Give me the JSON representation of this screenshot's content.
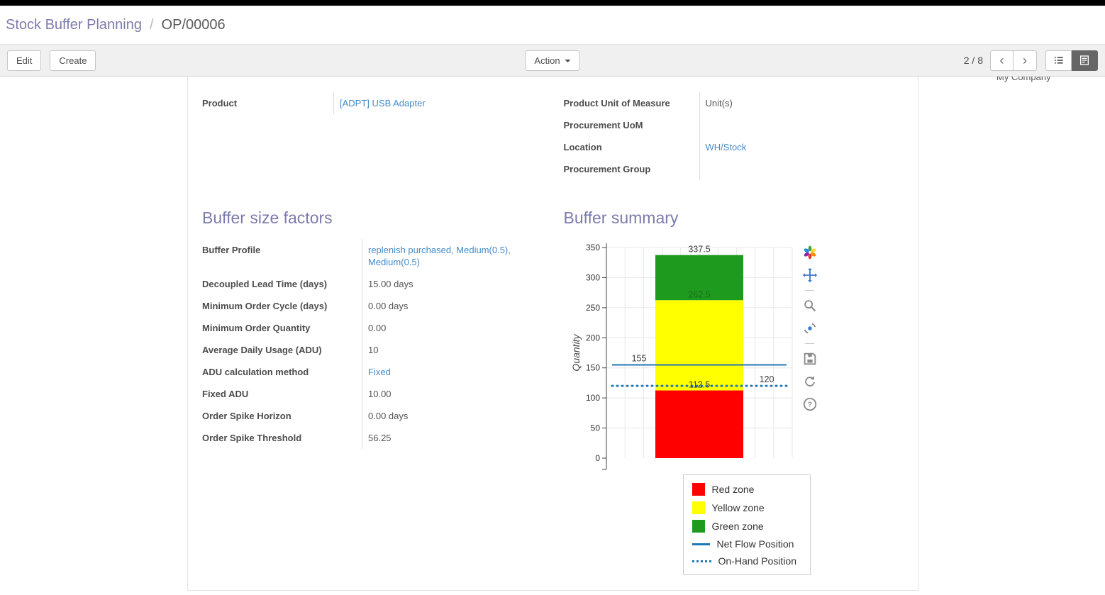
{
  "breadcrumb": {
    "parent": "Stock Buffer Planning",
    "separator": "/",
    "current": "OP/00006"
  },
  "toolbar": {
    "edit": "Edit",
    "create": "Create",
    "action": "Action",
    "pager": "2 / 8"
  },
  "icons": {
    "chevron_left_glyph": "‹",
    "chevron_right_glyph": "›"
  },
  "top_right_clipped_text": "My Company",
  "fields": {
    "left": [
      {
        "label": "Product",
        "value": "[ADPT] USB Adapter",
        "type": "link"
      }
    ],
    "right": [
      {
        "label": "Product Unit of Measure",
        "value": "Unit(s)"
      },
      {
        "label": "Procurement UoM",
        "value": ""
      },
      {
        "label": "Location",
        "value": "WH/Stock",
        "type": "link"
      },
      {
        "label": "Procurement Group",
        "value": ""
      }
    ]
  },
  "buffer_factors": {
    "title": "Buffer size factors",
    "fields": [
      {
        "label": "Buffer Profile",
        "value": "replenish purchased, Medium(0.5), Medium(0.5)",
        "type": "link"
      },
      {
        "label": "Decoupled Lead Time (days)",
        "value": "15.00",
        "suffix": "days"
      },
      {
        "label": "Minimum Order Cycle (days)",
        "value": "0.00",
        "suffix": "days"
      },
      {
        "label": "Minimum Order Quantity",
        "value": "0.00"
      },
      {
        "label": "Average Daily Usage (ADU)",
        "value": "10"
      },
      {
        "label": "ADU calculation method",
        "value": "Fixed",
        "type": "link"
      },
      {
        "label": "Fixed ADU",
        "value": "10.00"
      },
      {
        "label": "Order Spike Horizon",
        "value": "0.00",
        "suffix": "days"
      },
      {
        "label": "Order Spike Threshold",
        "value": "56.25"
      }
    ]
  },
  "buffer_summary": {
    "title": "Buffer summary"
  },
  "chart_data": {
    "type": "bar",
    "title": "Buffer summary",
    "ylabel": "Quantity",
    "ylim": [
      0,
      350
    ],
    "yticks": [
      0,
      50,
      100,
      150,
      200,
      250,
      300,
      350
    ],
    "grid": true,
    "zones": [
      {
        "name": "Red zone",
        "from": 0,
        "to": 112.5,
        "color": "#fe0000"
      },
      {
        "name": "Yellow zone",
        "from": 112.5,
        "to": 262.5,
        "color": "#ffff00"
      },
      {
        "name": "Green zone",
        "from": 262.5,
        "to": 337.5,
        "color": "#1e9a1e"
      }
    ],
    "annotations": [
      {
        "text": "337.5",
        "value": 337.5,
        "color": "#3c3c3c"
      },
      {
        "text": "262.5",
        "value": 262.5,
        "color": "#1b6e1b"
      },
      {
        "text": "112.5",
        "value": 112.5,
        "color": "#3c3c3c"
      }
    ],
    "lines": [
      {
        "name": "Net Flow Position",
        "value": 155,
        "style": "solid",
        "color": "#1f77b4",
        "label": "155",
        "label_side": "left"
      },
      {
        "name": "On-Hand Position",
        "value": 120,
        "style": "dotted",
        "color": "#1f77b4",
        "label": "120",
        "label_side": "right"
      }
    ],
    "legend_position": "bottom-right",
    "legend": [
      {
        "label": "Red zone",
        "swatch": "square",
        "color": "#fe0000"
      },
      {
        "label": "Yellow zone",
        "swatch": "square",
        "color": "#ffff00"
      },
      {
        "label": "Green zone",
        "swatch": "square",
        "color": "#1e9a1e"
      },
      {
        "label": "Net Flow Position",
        "swatch": "line",
        "color": "#1f77b4"
      },
      {
        "label": "On-Hand Position",
        "swatch": "dots",
        "color": "#1f77b4"
      }
    ]
  },
  "chart_toolbar": [
    {
      "name": "chart-logo-icon"
    },
    {
      "name": "pan-icon"
    },
    {
      "name": "divider"
    },
    {
      "name": "zoom-icon"
    },
    {
      "name": "hover-icon"
    },
    {
      "name": "divider"
    },
    {
      "name": "save-icon"
    },
    {
      "name": "reset-icon"
    },
    {
      "name": "help-icon"
    }
  ]
}
